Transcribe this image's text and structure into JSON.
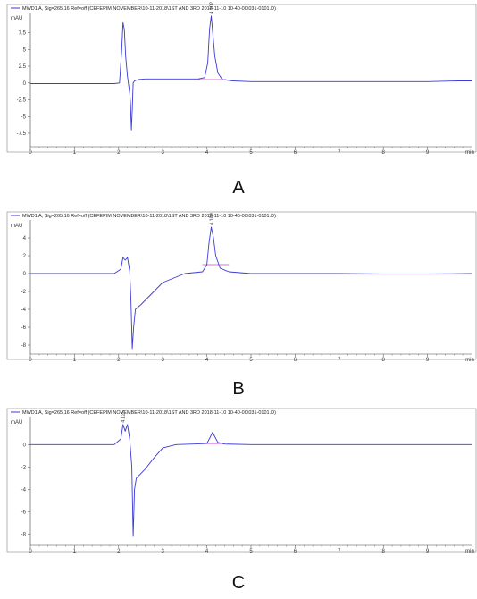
{
  "colors": {
    "trace": "#3a3ad6",
    "baseline": "#d040d0",
    "axis": "#444444",
    "frame": "#888888"
  },
  "chart_data": [
    {
      "type": "line",
      "panel_label": "A",
      "legend": "MWD1 A, Sig=265,16 Ref=off (CEFEPIM NOVEMBER\\10-11-2018\\1ST AND 3RD 2018-11-10 10-40-00\\031-0101.D)",
      "ylabel": "mAU",
      "xlabel": "min",
      "xlim": [
        0,
        10
      ],
      "ylim": [
        -9.5,
        10.5
      ],
      "xticks": [
        "0",
        "1",
        "2",
        "3",
        "4",
        "5",
        "6",
        "7",
        "8",
        "9"
      ],
      "yticks": [
        "-7.5",
        "-5",
        "-2.5",
        "0",
        "2.5",
        "5",
        "7.5"
      ],
      "yticks_values": [
        -7.5,
        -5,
        -2.5,
        0,
        2.5,
        5,
        7.5
      ],
      "peak_label": "4.102",
      "series": [
        {
          "x": [
            0,
            1,
            1.9,
            2.02,
            2.07,
            2.1,
            2.13,
            2.16,
            2.2,
            2.25,
            2.27,
            2.29,
            2.31,
            2.33,
            2.36,
            2.45,
            2.6,
            3,
            3.5,
            3.8,
            3.95,
            4.02,
            4.06,
            4.1,
            4.14,
            4.18,
            4.25,
            4.35,
            4.6,
            5,
            6,
            7,
            8,
            9,
            9.7,
            10
          ],
          "y": [
            -0.1,
            -0.1,
            -0.1,
            0,
            5,
            9,
            8,
            4,
            1,
            -1.5,
            -3,
            -7,
            -4,
            0,
            0.3,
            0.5,
            0.6,
            0.6,
            0.6,
            0.6,
            0.8,
            3,
            8,
            10,
            7,
            4,
            1.5,
            0.5,
            0.3,
            0.2,
            0.2,
            0.2,
            0.2,
            0.2,
            0.3,
            0.3
          ]
        }
      ],
      "baseline_segment": {
        "x": [
          3.8,
          4.45
        ],
        "y": [
          0.5,
          0.5
        ]
      }
    },
    {
      "type": "line",
      "panel_label": "B",
      "legend": "MWD1 A, Sig=265,16 Ref=off (CEFEPIM NOVEMBER\\10-11-2018\\1ST AND 3RD 2018-11-10 10-40-00\\031-0101.D)",
      "ylabel": "mAU",
      "xlabel": "min",
      "xlim": [
        0,
        10
      ],
      "ylim": [
        -9,
        6
      ],
      "xticks": [
        "0",
        "1",
        "2",
        "3",
        "4",
        "5",
        "6",
        "7",
        "8",
        "9"
      ],
      "yticks": [
        "-8",
        "-6",
        "-4",
        "-2",
        "0",
        "2",
        "4"
      ],
      "yticks_values": [
        -8,
        -6,
        -4,
        -2,
        0,
        2,
        4
      ],
      "peak_label": "4.109",
      "series": [
        {
          "x": [
            0,
            1,
            1.9,
            2.05,
            2.1,
            2.15,
            2.2,
            2.25,
            2.28,
            2.31,
            2.34,
            2.38,
            2.5,
            2.7,
            3,
            3.5,
            3.9,
            4.0,
            4.05,
            4.1,
            4.15,
            4.2,
            4.3,
            4.5,
            5,
            6,
            7,
            8,
            9,
            10
          ],
          "y": [
            0,
            0,
            0,
            0.5,
            1.8,
            1.5,
            1.8,
            0.3,
            -3,
            -8.4,
            -6,
            -4,
            -3.5,
            -2.5,
            -1,
            0,
            0.2,
            1,
            3.5,
            5.2,
            4,
            2,
            0.6,
            0.2,
            0,
            0,
            0,
            -0.05,
            -0.05,
            0
          ]
        }
      ],
      "baseline_segment": {
        "x": [
          3.9,
          4.5
        ],
        "y": [
          1.0,
          1.0
        ]
      }
    },
    {
      "type": "line",
      "panel_label": "C",
      "legend": "MWD1 A, Sig=265,16 Ref=off (CEFEPIM NOVEMBER\\10-11-2018\\1ST AND 3RD 2018-11-10 10-40-00\\031-0101.D)",
      "ylabel": "mAU",
      "xlabel": "min",
      "xlim": [
        0,
        10
      ],
      "ylim": [
        -9,
        2.5
      ],
      "xticks": [
        "0",
        "1",
        "2",
        "3",
        "4",
        "5",
        "6",
        "7",
        "8",
        "9"
      ],
      "yticks": [
        "-8",
        "-6",
        "-4",
        "-2",
        "0"
      ],
      "yticks_values": [
        -8,
        -6,
        -4,
        -2,
        0
      ],
      "peak_label": "4.125",
      "series": [
        {
          "x": [
            0,
            1,
            1.9,
            2.05,
            2.1,
            2.15,
            2.2,
            2.25,
            2.3,
            2.33,
            2.36,
            2.4,
            2.45,
            2.6,
            2.8,
            3,
            3.3,
            3.7,
            4.0,
            4.08,
            4.13,
            4.18,
            4.25,
            4.4,
            5,
            6,
            7,
            8,
            9,
            10
          ],
          "y": [
            0,
            0,
            0,
            0.5,
            1.8,
            1.2,
            1.8,
            0.5,
            -2,
            -8.2,
            -4,
            -3,
            -2.8,
            -2.2,
            -1.2,
            -0.3,
            0,
            0.05,
            0.1,
            0.7,
            1.1,
            0.7,
            0.2,
            0.05,
            0,
            0,
            0,
            0,
            0,
            0
          ]
        }
      ],
      "baseline_segment": {
        "x": [
          3.95,
          4.4
        ],
        "y": [
          0.1,
          0.1
        ]
      }
    }
  ]
}
